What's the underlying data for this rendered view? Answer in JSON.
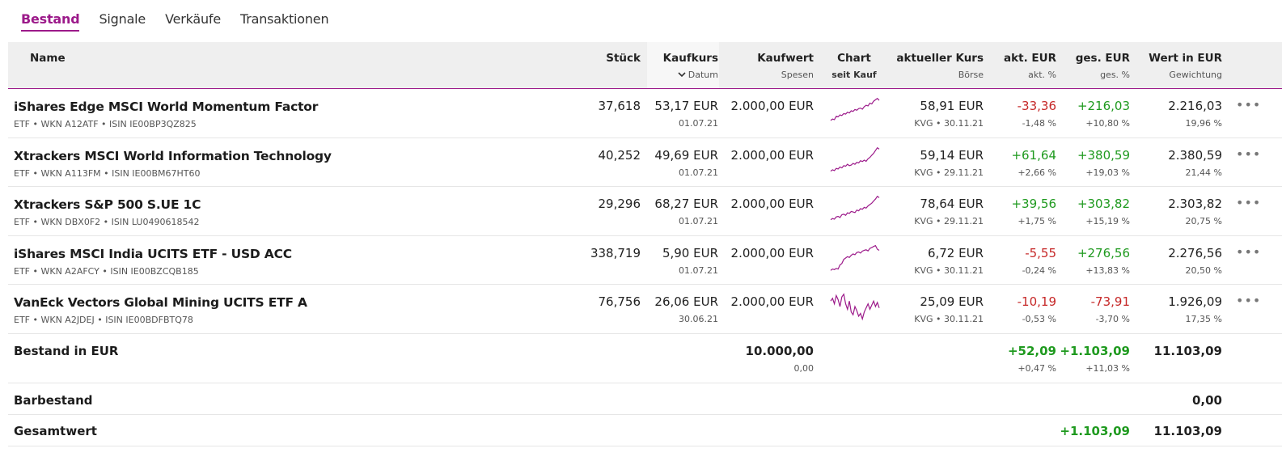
{
  "tabs": [
    "Bestand",
    "Signale",
    "Verkäufe",
    "Transaktionen"
  ],
  "active_tab": "Bestand",
  "headers": {
    "name": "Name",
    "stueck": "Stück",
    "kaufkurs": "Kaufkurs",
    "kaufkurs_sub": "Datum",
    "kaufwert": "Kaufwert",
    "kaufwert_sub": "Spesen",
    "chart": "Chart",
    "chart_sub": "seit Kauf",
    "aktueller_kurs": "aktueller Kurs",
    "aktueller_kurs_sub": "Börse",
    "akt_eur": "akt. EUR",
    "akt_eur_sub": "akt. %",
    "ges_eur": "ges. EUR",
    "ges_eur_sub": "ges. %",
    "wert": "Wert in EUR",
    "wert_sub": "Gewichtung"
  },
  "rows": [
    {
      "name": "iShares Edge MSCI World Momentum Factor",
      "meta": "ETF • WKN A12ATF • ISIN IE00BP3QZ825",
      "stueck": "37,618",
      "kaufkurs": "53,17 EUR",
      "datum": "01.07.21",
      "kaufwert": "2.000,00 EUR",
      "kurs": "58,91 EUR",
      "boerse": "KVG • 30.11.21",
      "akt_eur": "-33,36",
      "akt_pct": "-1,48 %",
      "akt_sign": "neg",
      "ges_eur": "+216,03",
      "ges_pct": "+10,80 %",
      "ges_sign": "pos",
      "wert": "2.216,03",
      "gewichtung": "19,96 %",
      "spark": [
        0.15,
        0.2,
        0.18,
        0.3,
        0.28,
        0.35,
        0.33,
        0.4,
        0.38,
        0.45,
        0.42,
        0.5,
        0.48,
        0.55,
        0.52,
        0.58,
        0.6,
        0.56,
        0.65,
        0.7,
        0.68,
        0.78,
        0.75,
        0.85,
        0.9,
        0.95,
        0.88
      ]
    },
    {
      "name": "Xtrackers MSCI World Information Technology",
      "meta": "ETF • WKN A113FM • ISIN IE00BM67HT60",
      "stueck": "40,252",
      "kaufkurs": "49,69 EUR",
      "datum": "01.07.21",
      "kaufwert": "2.000,00 EUR",
      "kurs": "59,14 EUR",
      "boerse": "KVG • 29.11.21",
      "akt_eur": "+61,64",
      "akt_pct": "+2,66 %",
      "akt_sign": "pos",
      "ges_eur": "+380,59",
      "ges_pct": "+19,03 %",
      "ges_sign": "pos",
      "wert": "2.380,59",
      "gewichtung": "21,44 %",
      "spark": [
        0.1,
        0.15,
        0.12,
        0.2,
        0.18,
        0.25,
        0.22,
        0.3,
        0.28,
        0.35,
        0.3,
        0.32,
        0.38,
        0.35,
        0.42,
        0.4,
        0.48,
        0.45,
        0.5,
        0.46,
        0.55,
        0.6,
        0.68,
        0.75,
        0.85,
        0.95,
        0.9
      ]
    },
    {
      "name": "Xtrackers S&P 500 S.UE 1C",
      "meta": "ETF • WKN DBX0F2 • ISIN LU0490618542",
      "stueck": "29,296",
      "kaufkurs": "68,27 EUR",
      "datum": "01.07.21",
      "kaufwert": "2.000,00 EUR",
      "kurs": "78,64 EUR",
      "boerse": "KVG • 29.11.21",
      "akt_eur": "+39,56",
      "akt_pct": "+1,75 %",
      "akt_sign": "pos",
      "ges_eur": "+303,82",
      "ges_pct": "+15,19 %",
      "ges_sign": "pos",
      "wert": "2.303,82",
      "gewichtung": "20,75 %",
      "spark": [
        0.1,
        0.14,
        0.12,
        0.2,
        0.22,
        0.18,
        0.28,
        0.3,
        0.26,
        0.35,
        0.33,
        0.4,
        0.38,
        0.36,
        0.45,
        0.42,
        0.5,
        0.48,
        0.55,
        0.52,
        0.6,
        0.65,
        0.7,
        0.78,
        0.85,
        0.95,
        0.9
      ]
    },
    {
      "name": "iShares MSCI India UCITS ETF - USD ACC",
      "meta": "ETF • WKN A2AFCY • ISIN IE00BZCQB185",
      "stueck": "338,719",
      "kaufkurs": "5,90 EUR",
      "datum": "01.07.21",
      "kaufwert": "2.000,00 EUR",
      "kurs": "6,72 EUR",
      "boerse": "KVG • 30.11.21",
      "akt_eur": "-5,55",
      "akt_pct": "-0,24 %",
      "akt_sign": "neg",
      "ges_eur": "+276,56",
      "ges_pct": "+13,83 %",
      "ges_sign": "pos",
      "wert": "2.276,56",
      "gewichtung": "20,50 %",
      "spark": [
        0.05,
        0.1,
        0.08,
        0.12,
        0.1,
        0.25,
        0.3,
        0.45,
        0.5,
        0.55,
        0.52,
        0.6,
        0.65,
        0.62,
        0.7,
        0.72,
        0.68,
        0.75,
        0.78,
        0.8,
        0.76,
        0.85,
        0.88,
        0.92,
        0.95,
        0.82,
        0.78
      ]
    },
    {
      "name": "VanEck Vectors Global Mining UCITS ETF A",
      "meta": "ETF • WKN A2JDEJ • ISIN IE00BDFBTQ78",
      "stueck": "76,756",
      "kaufkurs": "26,06 EUR",
      "datum": "30.06.21",
      "kaufwert": "2.000,00 EUR",
      "kurs": "25,09 EUR",
      "boerse": "KVG • 30.11.21",
      "akt_eur": "-10,19",
      "akt_pct": "-0,53 %",
      "akt_sign": "neg",
      "ges_eur": "-73,91",
      "ges_pct": "-3,70 %",
      "ges_sign": "neg",
      "wert": "1.926,09",
      "gewichtung": "17,35 %",
      "spark": [
        0.7,
        0.8,
        0.6,
        0.9,
        0.75,
        0.5,
        0.85,
        0.95,
        0.6,
        0.4,
        0.7,
        0.3,
        0.2,
        0.5,
        0.35,
        0.15,
        0.25,
        0.05,
        0.3,
        0.45,
        0.6,
        0.4,
        0.55,
        0.7,
        0.5,
        0.65,
        0.45
      ]
    }
  ],
  "summary": {
    "bestand_label": "Bestand in EUR",
    "bestand_kaufwert": "10.000,00",
    "bestand_spesen": "0,00",
    "bestand_akt_eur": "+52,09",
    "bestand_akt_pct": "+0,47 %",
    "bestand_ges_eur": "+1.103,09",
    "bestand_ges_pct": "+11,03 %",
    "bestand_wert": "11.103,09",
    "barbestand_label": "Barbestand",
    "barbestand_wert": "0,00",
    "gesamt_label": "Gesamtwert",
    "gesamt_ges_eur": "+1.103,09",
    "gesamt_wert": "11.103,09"
  },
  "colors": {
    "accent": "#9c1a8a",
    "negative": "#c62828",
    "positive": "#1f9a1f"
  },
  "icons": {
    "sort": "chevron-down-icon",
    "more": "more-icon"
  },
  "more_symbol": "•••"
}
